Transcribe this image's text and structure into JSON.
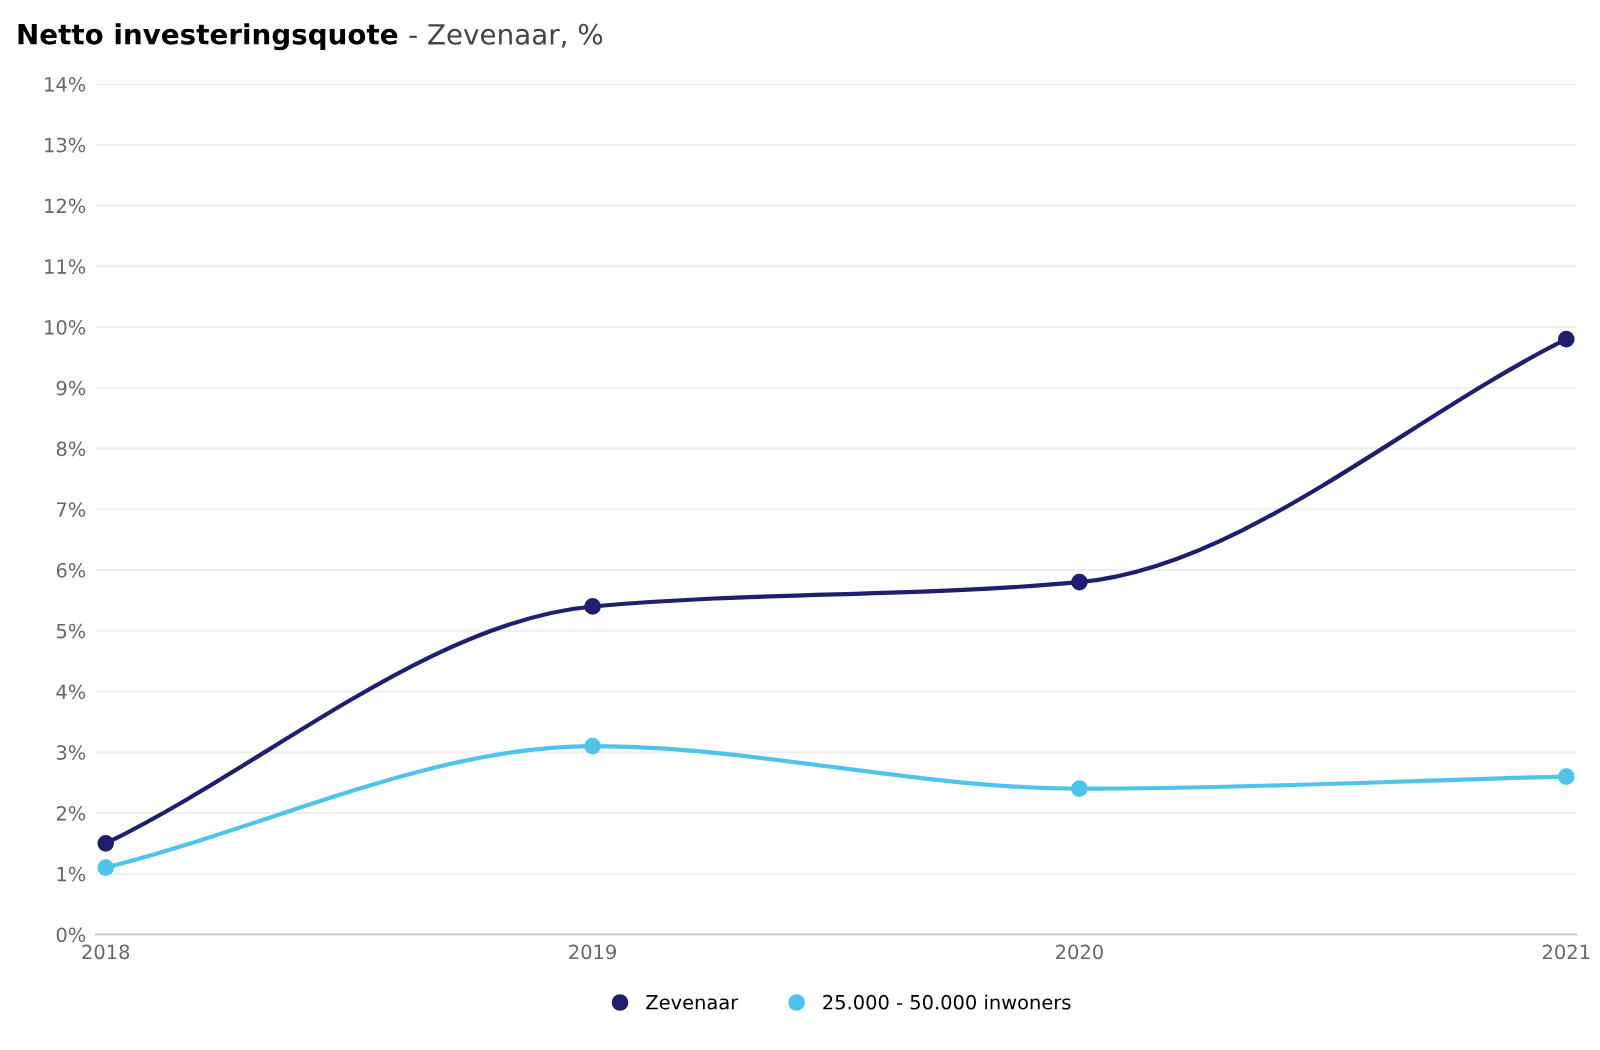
{
  "chart_data": {
    "type": "line",
    "title": "Netto investeringsquote",
    "subtitle": "- Zevenaar, %",
    "categories": [
      "2018",
      "2019",
      "2020",
      "2021"
    ],
    "series": [
      {
        "name": "Zevenaar",
        "color": "#1f1f6e",
        "values": [
          1.5,
          5.4,
          5.8,
          9.8
        ]
      },
      {
        "name": "25.000 - 50.000 inwoners",
        "color": "#4fc3ea",
        "values": [
          1.1,
          3.1,
          2.4,
          2.6
        ]
      }
    ],
    "ylim": [
      0,
      14
    ],
    "yticks": [
      {
        "value": 0,
        "label": "0%"
      },
      {
        "value": 1,
        "label": "1%"
      },
      {
        "value": 2,
        "label": "2%"
      },
      {
        "value": 3,
        "label": "3%"
      },
      {
        "value": 4,
        "label": "4%"
      },
      {
        "value": 5,
        "label": "5%"
      },
      {
        "value": 6,
        "label": "6%"
      },
      {
        "value": 7,
        "label": "7%"
      },
      {
        "value": 8,
        "label": "8%"
      },
      {
        "value": 9,
        "label": "9%"
      },
      {
        "value": 10,
        "label": "10%"
      },
      {
        "value": 11,
        "label": "11%"
      },
      {
        "value": 12,
        "label": "12%"
      },
      {
        "value": 13,
        "label": "13%"
      },
      {
        "value": 14,
        "label": "14%"
      }
    ],
    "grid": "y",
    "legend": "bottom",
    "marker": "circle",
    "line_style": "solid"
  }
}
